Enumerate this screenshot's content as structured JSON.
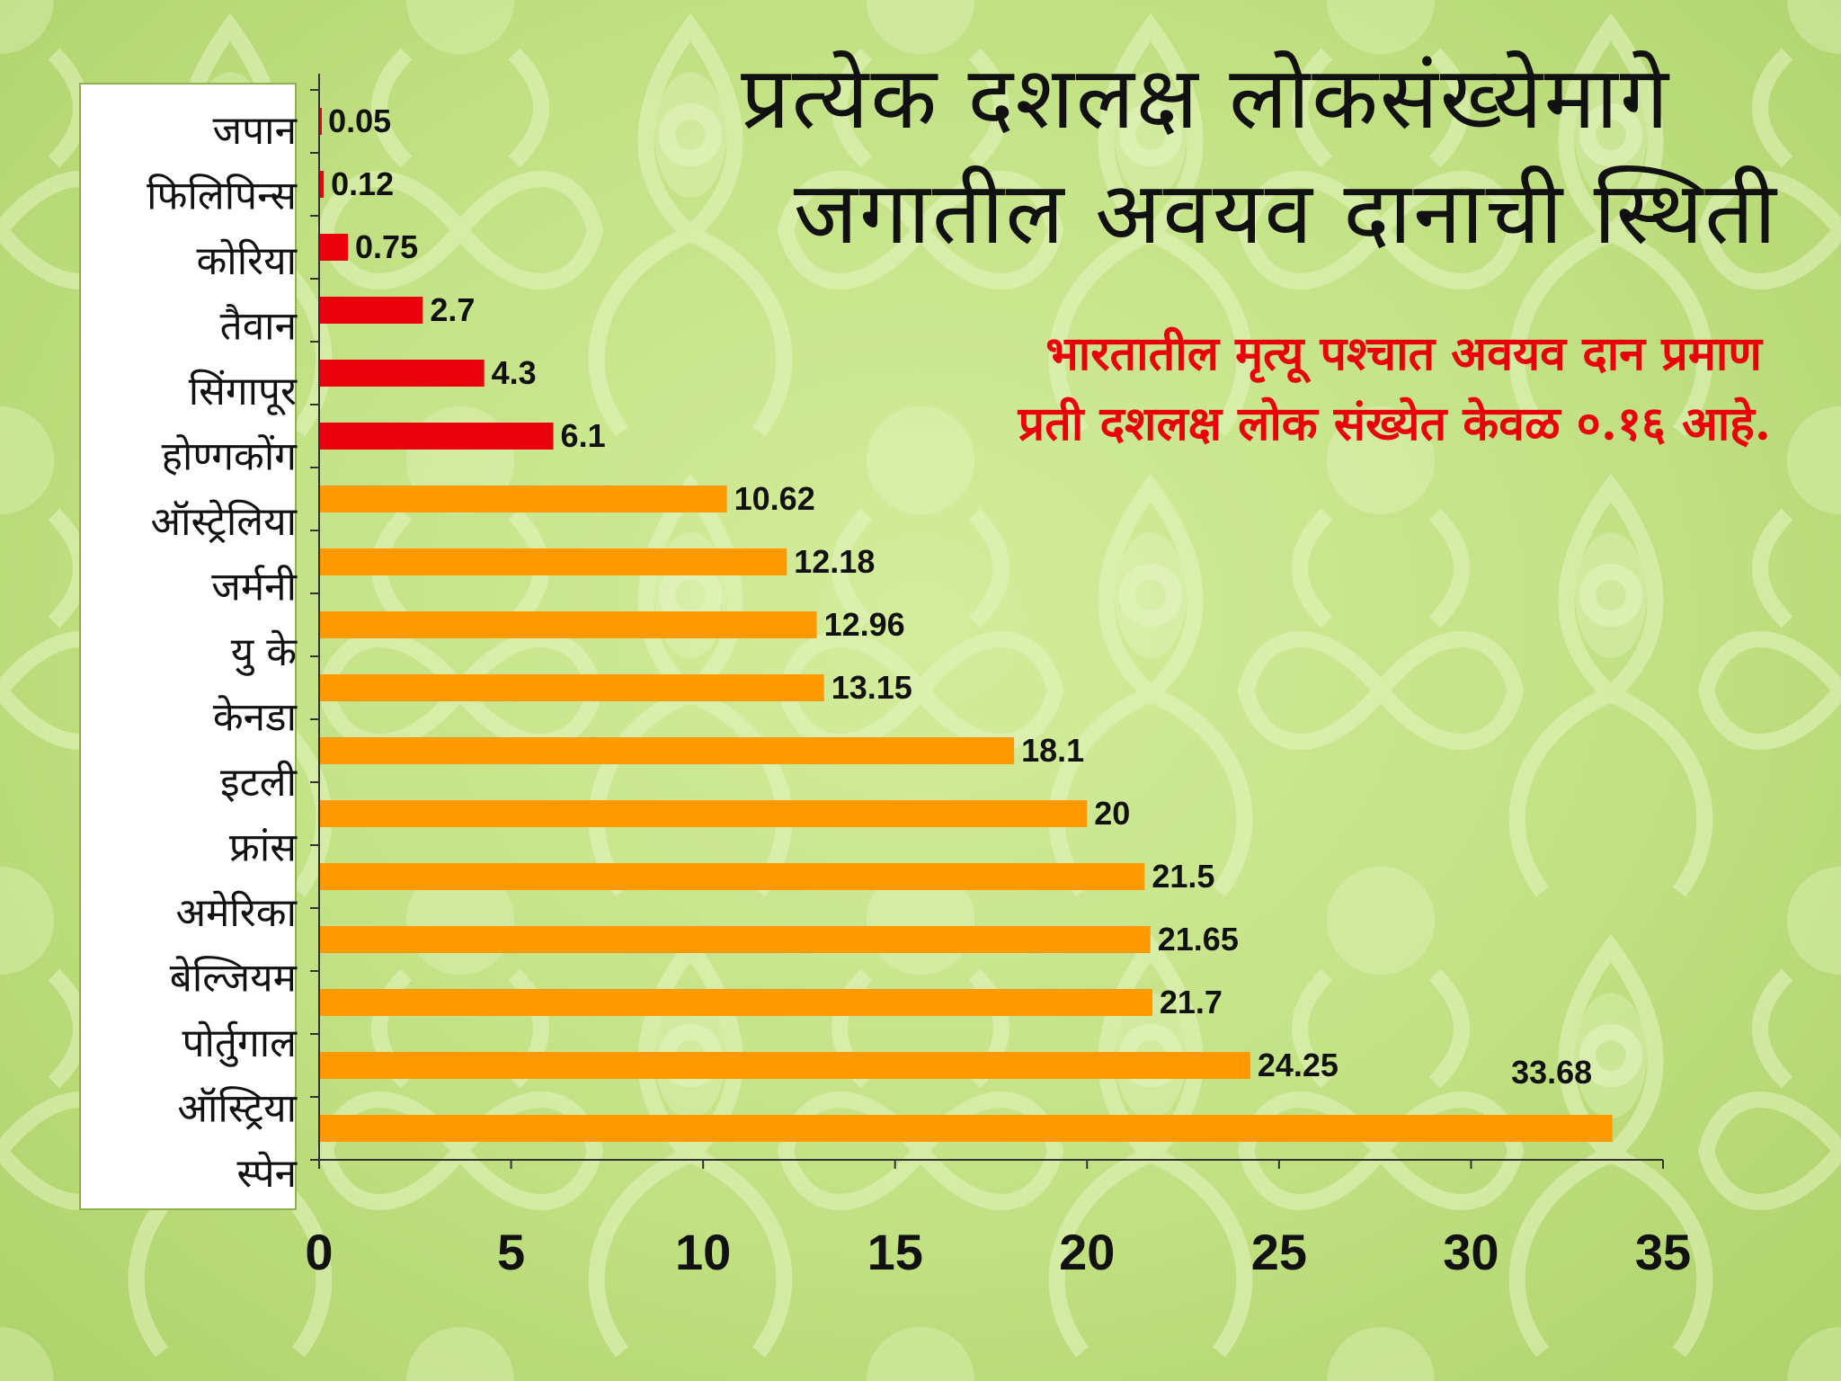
{
  "title_lines": [
    "प्रत्येक दशलक्ष लोकसंख्येमागे",
    "जगातील अवयव दानाची स्थिती"
  ],
  "note_lines": [
    "भारतातील मृत्यू पश्चात अवयव दान प्रमाण",
    "प्रती दशलक्ष लोक संख्येत केवळ ०.१६ आहे."
  ],
  "chart_data": {
    "type": "bar",
    "orientation": "horizontal",
    "title": "प्रत्येक दशलक्ष लोकसंख्येमागे जगातील अवयव दानाची स्थिती",
    "xlabel": "",
    "ylabel": "",
    "xlim": [
      0,
      35
    ],
    "x_ticks": [
      "0",
      "5",
      "10",
      "15",
      "20",
      "25",
      "30",
      "35"
    ],
    "categories": [
      "जपान",
      "फिलिपिन्स",
      "कोरिया",
      "तैवान",
      "सिंगापूर",
      "होण्गकोंग",
      "ऑस्ट्रेलिया",
      "जर्मनी",
      "यु के",
      "केनडा",
      "इटली",
      "फ्रांस",
      "अमेरिका",
      "बेल्जियम",
      "पोर्तुगाल",
      "ऑस्ट्रिया",
      "स्पेन"
    ],
    "values": [
      0.05,
      0.12,
      0.75,
      2.7,
      4.3,
      6.1,
      10.62,
      12.18,
      12.96,
      13.15,
      18.1,
      20,
      21.5,
      21.65,
      21.7,
      24.25,
      33.68
    ],
    "value_labels": [
      "0.05",
      "0.12",
      "0.75",
      "2.7",
      "4.3",
      "6.1",
      "10.62",
      "12.18",
      "12.96",
      "13.15",
      "18.1",
      "20",
      "21.5",
      "21.65",
      "21.7",
      "24.25",
      "33.68"
    ],
    "bar_colors": [
      "#e8000b",
      "#e8000b",
      "#e8000b",
      "#e8000b",
      "#e8000b",
      "#e8000b",
      "#ff9900",
      "#ff9900",
      "#ff9900",
      "#ff9900",
      "#ff9900",
      "#ff9900",
      "#ff9900",
      "#ff9900",
      "#ff9900",
      "#ff9900",
      "#ff9900"
    ],
    "grid": false,
    "legend": "none"
  }
}
